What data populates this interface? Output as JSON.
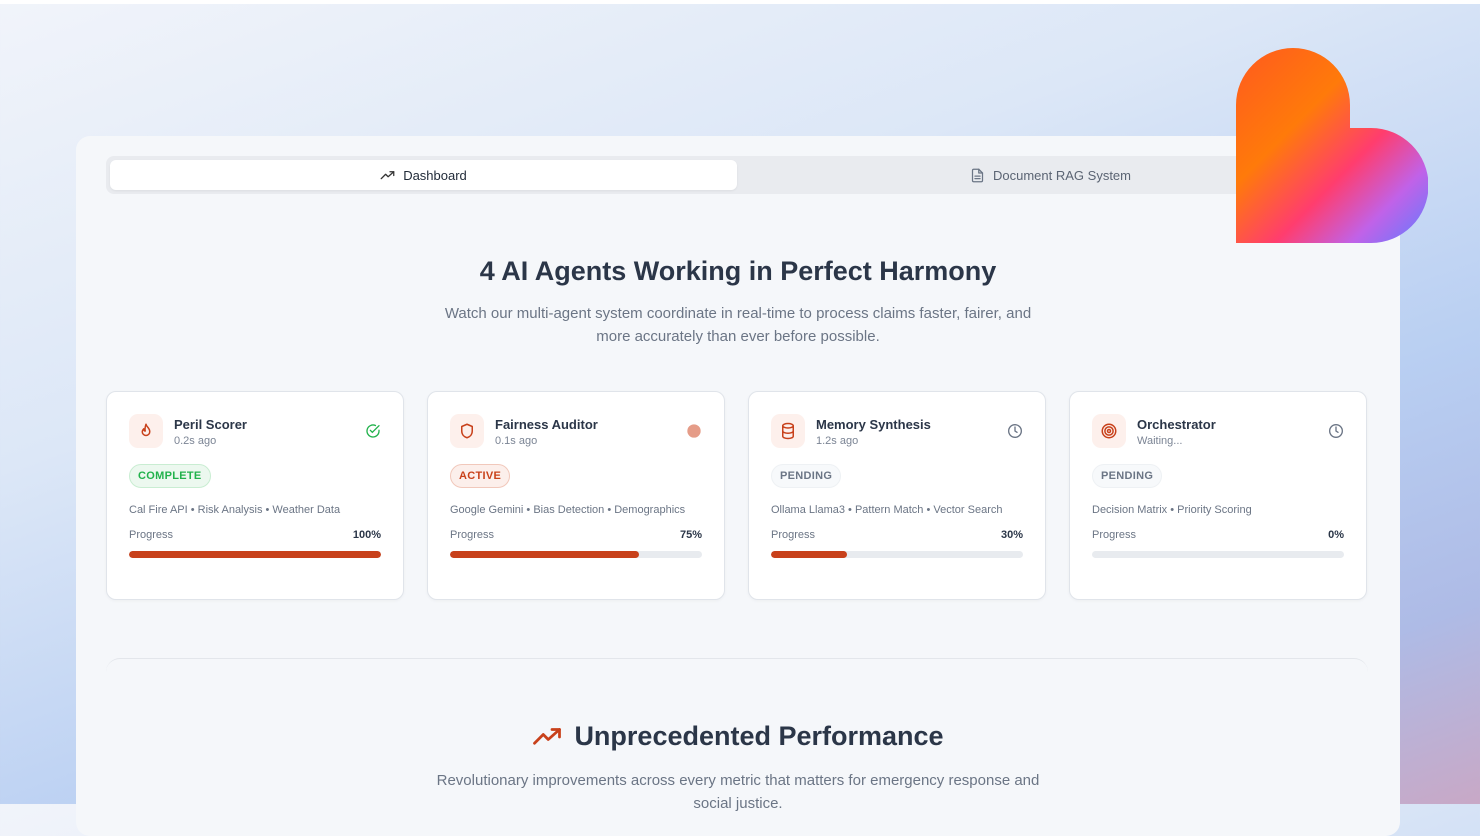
{
  "tabs": [
    {
      "label": "Dashboard",
      "icon": "trending-up-icon",
      "active": true
    },
    {
      "label": "Document RAG System",
      "icon": "document-icon",
      "active": false
    }
  ],
  "hero": {
    "title": "4 AI Agents Working in Perfect Harmony",
    "subtitle": "Watch our multi-agent system coordinate in real-time to process claims faster, fairer, and more accurately than ever before possible."
  },
  "agents": [
    {
      "name": "Peril Scorer",
      "time": "0.2s ago",
      "icon": "flame-icon",
      "status": "COMPLETE",
      "status_icon": "check-circle-icon",
      "tags": "Cal Fire API • Risk Analysis • Weather Data",
      "progress_label": "Progress",
      "progress_text": "100%",
      "progress": 100
    },
    {
      "name": "Fairness Auditor",
      "time": "0.1s ago",
      "icon": "shield-icon",
      "status": "ACTIVE",
      "status_icon": "active-dot-icon",
      "tags": "Google Gemini • Bias Detection • Demographics",
      "progress_label": "Progress",
      "progress_text": "75%",
      "progress": 75
    },
    {
      "name": "Memory Synthesis",
      "time": "1.2s ago",
      "icon": "database-icon",
      "status": "PENDING",
      "status_icon": "clock-icon",
      "tags": "Ollama Llama3 • Pattern Match • Vector Search",
      "progress_label": "Progress",
      "progress_text": "30%",
      "progress": 30
    },
    {
      "name": "Orchestrator",
      "time": "Waiting...",
      "icon": "target-icon",
      "status": "PENDING",
      "status_icon": "clock-icon",
      "tags": "Decision Matrix • Priority Scoring",
      "progress_label": "Progress",
      "progress_text": "0%",
      "progress": 0
    }
  ],
  "performance": {
    "title": "Unprecedented Performance",
    "subtitle": "Revolutionary improvements across every metric that matters for emergency response and social justice."
  },
  "colors": {
    "accent": "#c8411b",
    "complete": "#22b24c",
    "heading": "#2b3648"
  }
}
